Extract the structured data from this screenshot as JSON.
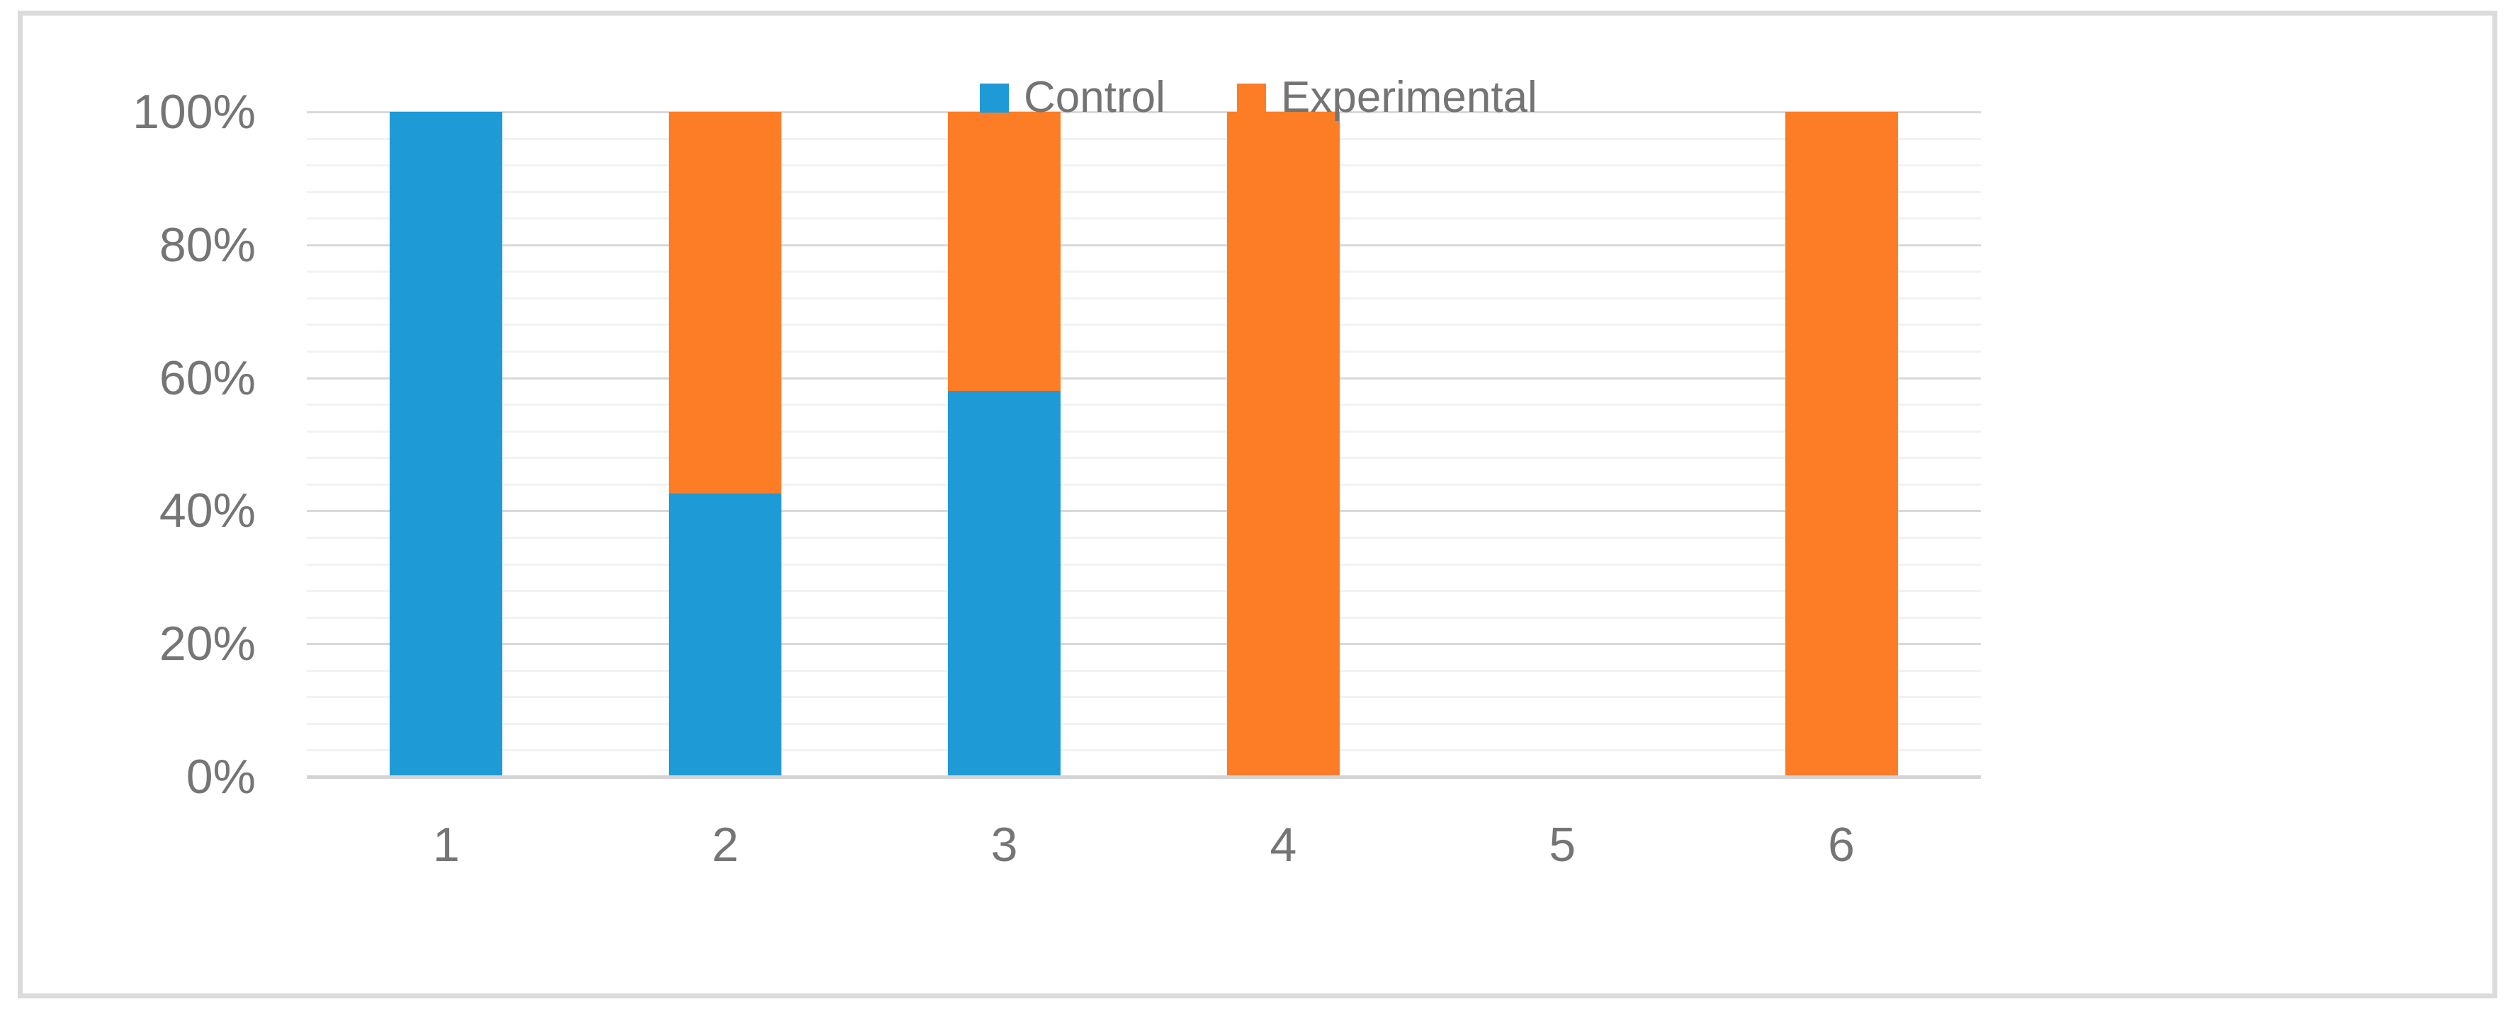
{
  "chart_data": {
    "type": "bar",
    "subtype": "100%-stacked-column",
    "title": "",
    "xlabel": "",
    "ylabel": "",
    "categories": [
      "1",
      "2",
      "3",
      "4",
      "5",
      "6"
    ],
    "series": [
      {
        "name": "Control",
        "color": "#1E9AD6",
        "values": [
          100,
          42.6,
          58,
          0,
          0,
          0
        ]
      },
      {
        "name": "Experimental",
        "color": "#FC7D26",
        "values": [
          0,
          57.4,
          42,
          100,
          0,
          100
        ]
      }
    ],
    "ylim": [
      0,
      100
    ],
    "y_ticks": [
      "0%",
      "20%",
      "40%",
      "60%",
      "80%",
      "100%"
    ],
    "y_major_step_percent": 20,
    "y_minor_step_percent": 4,
    "grid": "major-and-minor-horizontal",
    "legend_position": "top-center"
  },
  "legend": {
    "control_label": "Control",
    "experimental_label": "Experimental"
  },
  "colors": {
    "control": "#1E9AD6",
    "experimental": "#FC7D26",
    "major_gridline": "#d9d9d9",
    "minor_gridline": "#f2f2f2",
    "axis_line": "#d4d4d4",
    "tick_text": "#757575",
    "legend_text": "#747474",
    "frame_border": "#dbdbdb",
    "background": "#ffffff"
  }
}
